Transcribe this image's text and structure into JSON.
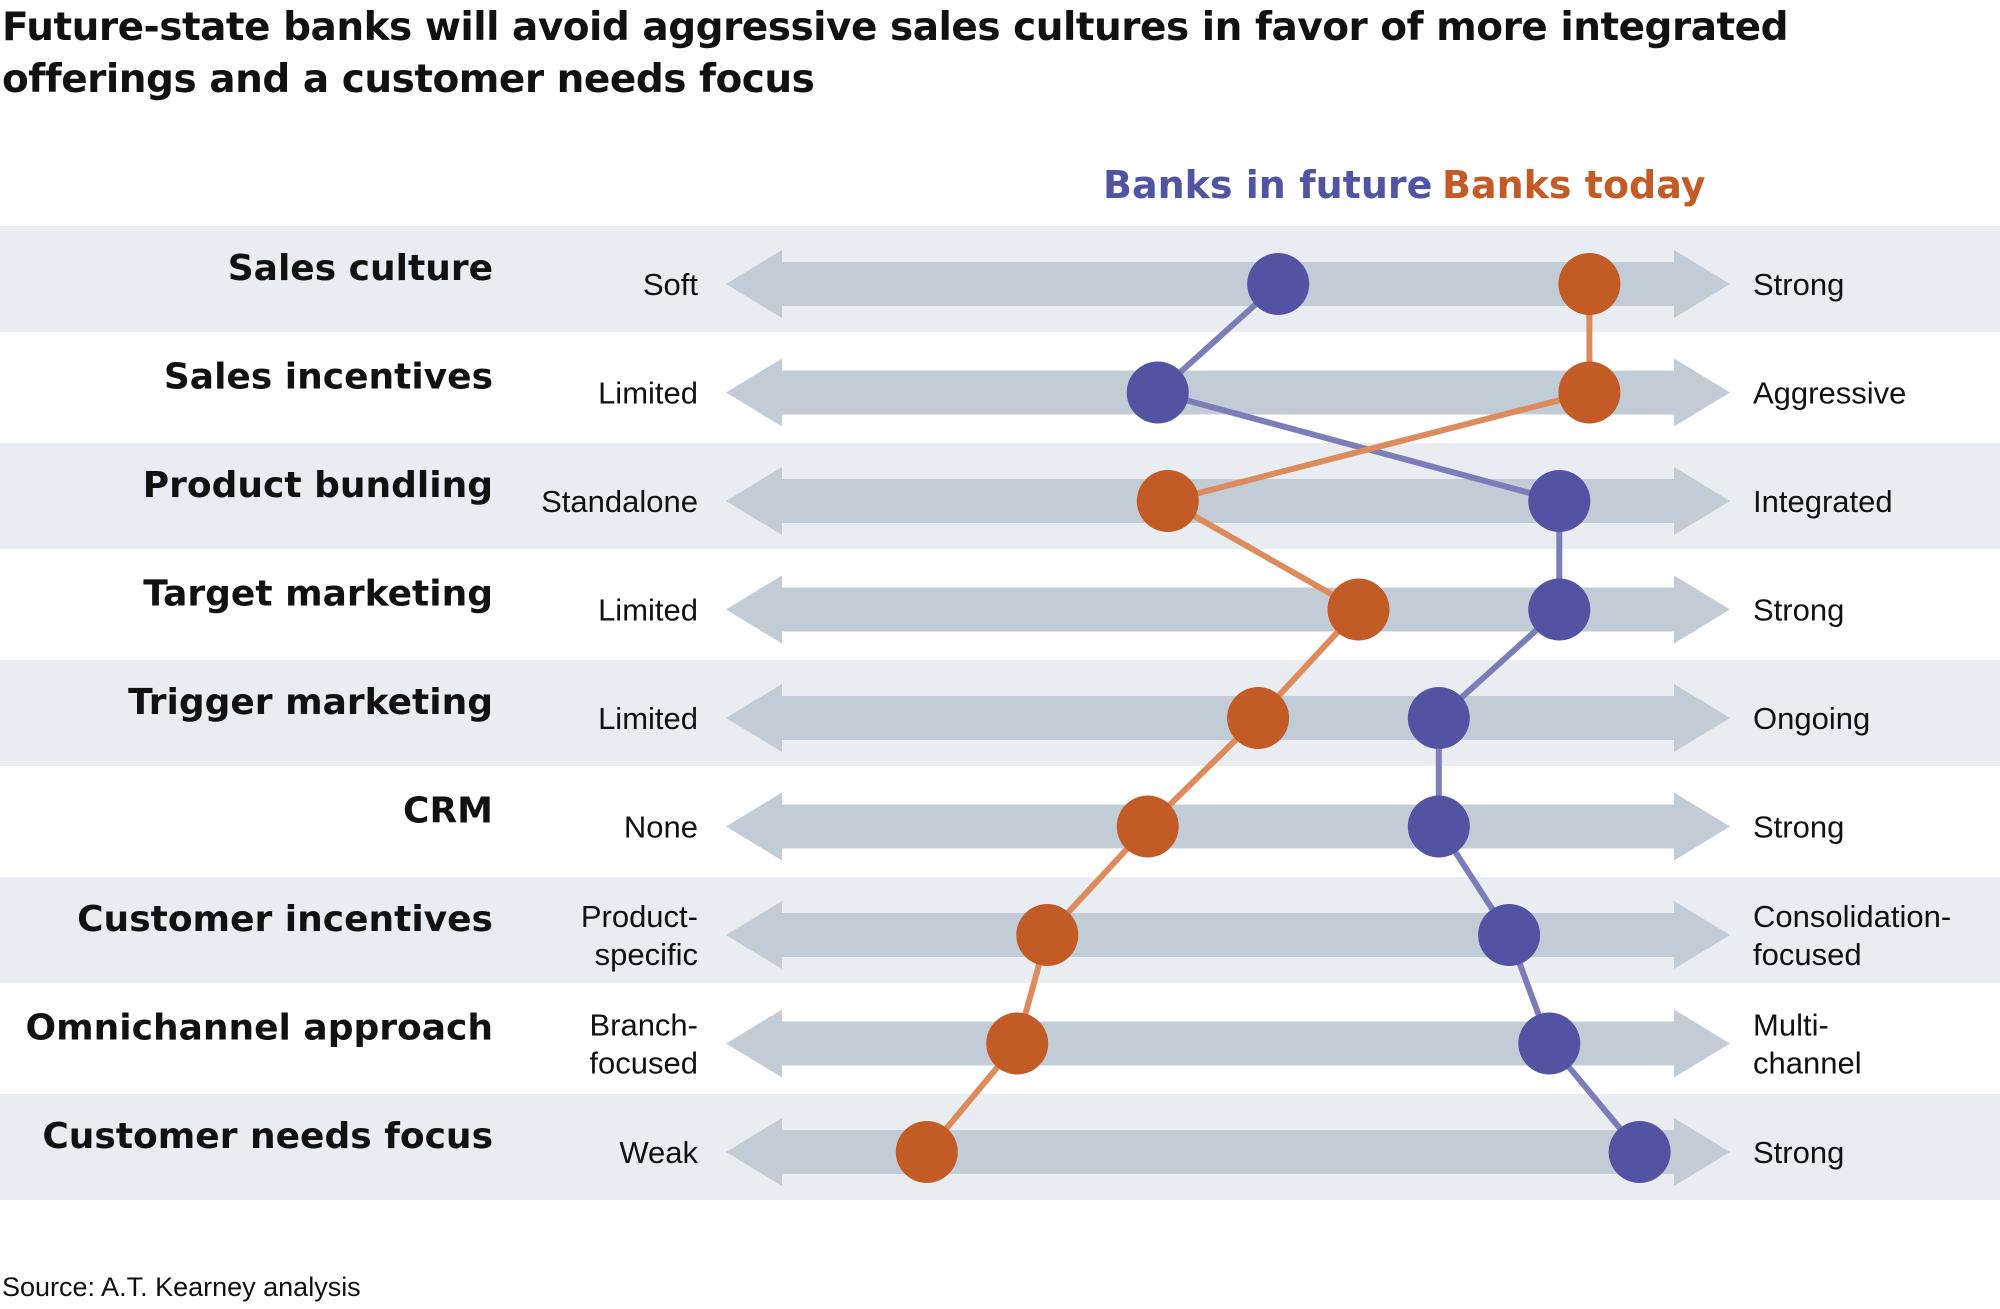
{
  "title": "Future-state banks will avoid aggressive sales cultures in favor of more integrated offerings and a customer needs focus",
  "source": "Source: A.T. Kearney analysis",
  "colors": {
    "future": "#5254a3",
    "today": "#c25b25",
    "future_line": "#7b7db8",
    "today_line": "#dd8a5c",
    "band": "#e9edf1",
    "arrow": "#c2ccd7"
  },
  "chart_data": {
    "type": "slope",
    "scale": [
      0,
      100
    ],
    "series": [
      {
        "name": "Banks in future",
        "key": "future",
        "values": [
          55,
          43,
          83,
          83,
          71,
          71,
          78,
          82,
          91
        ]
      },
      {
        "name": "Banks today",
        "key": "today",
        "values": [
          86,
          86,
          44,
          63,
          53,
          42,
          32,
          29,
          20
        ]
      }
    ],
    "rows": [
      {
        "label": "Sales culture",
        "left": [
          "Soft"
        ],
        "right": [
          "Strong"
        ]
      },
      {
        "label": "Sales incentives",
        "left": [
          "Limited"
        ],
        "right": [
          "Aggressive"
        ]
      },
      {
        "label": "Product bundling",
        "left": [
          "Standalone"
        ],
        "right": [
          "Integrated"
        ]
      },
      {
        "label": "Target marketing",
        "left": [
          "Limited"
        ],
        "right": [
          "Strong"
        ]
      },
      {
        "label": "Trigger marketing",
        "left": [
          "Limited"
        ],
        "right": [
          "Ongoing"
        ]
      },
      {
        "label": "CRM",
        "left": [
          "None"
        ],
        "right": [
          "Strong"
        ]
      },
      {
        "label": "Customer incentives",
        "left": [
          "Product-",
          "specific"
        ],
        "right": [
          "Consolidation-",
          "focused"
        ]
      },
      {
        "label": "Omnichannel approach",
        "left": [
          "Branch-",
          "focused"
        ],
        "right": [
          "Multi-",
          "channel"
        ]
      },
      {
        "label": "Customer needs focus",
        "left": [
          "Weak"
        ],
        "right": [
          "Strong"
        ]
      }
    ]
  }
}
